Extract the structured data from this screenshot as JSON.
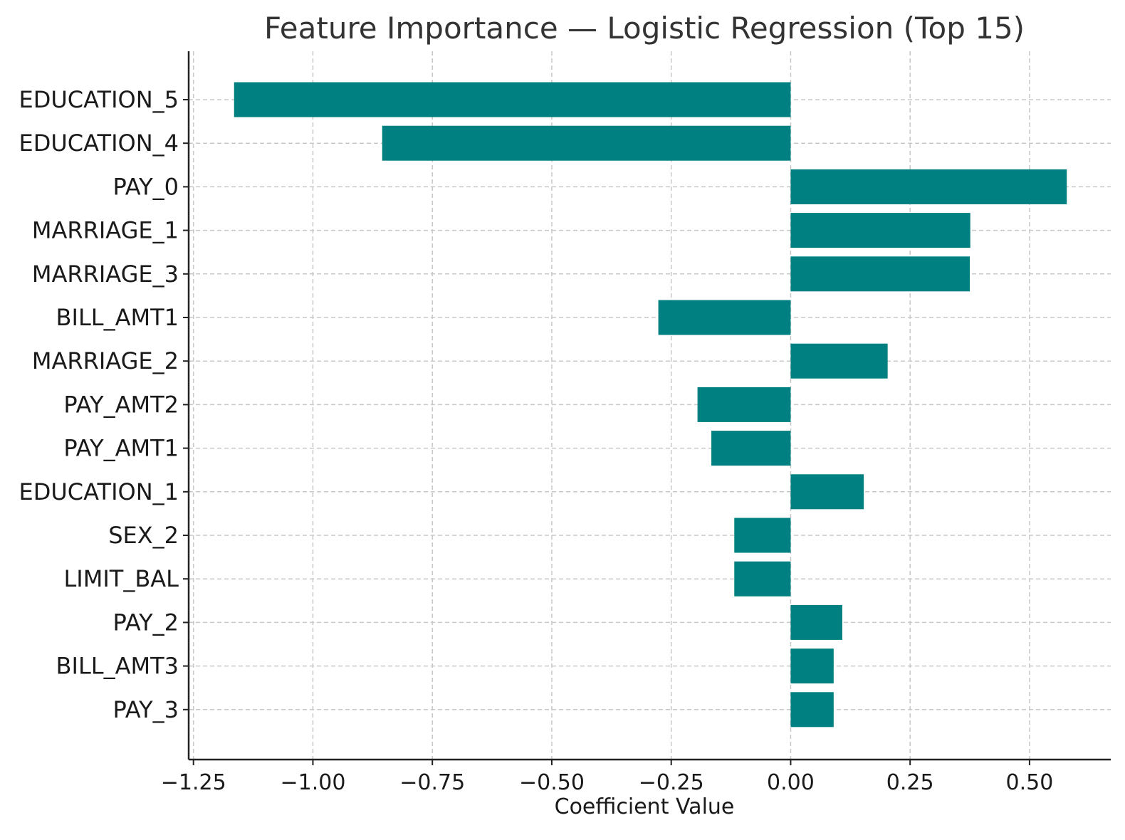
{
  "chart_data": {
    "type": "bar",
    "orientation": "horizontal",
    "title": "Feature Importance — Logistic Regression (Top 15)",
    "xlabel": "Coefficient Value",
    "ylabel": "",
    "categories": [
      "EDUCATION_5",
      "EDUCATION_4",
      "PAY_0",
      "MARRIAGE_1",
      "MARRIAGE_3",
      "BILL_AMT1",
      "MARRIAGE_2",
      "PAY_AMT2",
      "PAY_AMT1",
      "EDUCATION_1",
      "SEX_2",
      "LIMIT_BAL",
      "PAY_2",
      "BILL_AMT3",
      "PAY_3"
    ],
    "values": [
      -1.165,
      -0.855,
      0.578,
      0.376,
      0.375,
      -0.277,
      0.203,
      -0.195,
      -0.166,
      0.153,
      -0.118,
      -0.118,
      0.108,
      0.09,
      0.09
    ],
    "xlim": [
      -1.26,
      0.67
    ],
    "xticks": [
      -1.25,
      -1.0,
      -0.75,
      -0.5,
      -0.25,
      0.0,
      0.25,
      0.5
    ],
    "xtick_labels": [
      "−1.25",
      "−1.00",
      "−0.75",
      "−0.50",
      "−0.25",
      "0.00",
      "0.25",
      "0.50"
    ],
    "grid": true,
    "bar_color": "#008080"
  }
}
